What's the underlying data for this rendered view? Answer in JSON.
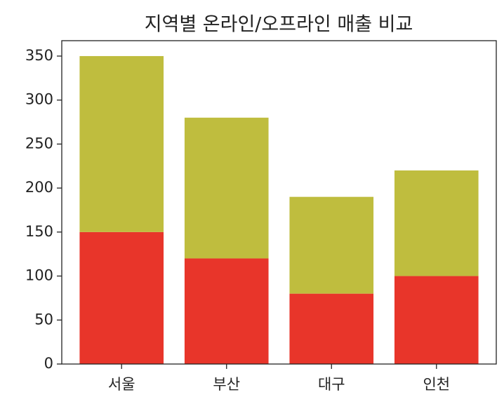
{
  "chart_data": {
    "type": "stacked_bar",
    "title": "지역별 온라인/오프라인 매출 비교",
    "categories": [
      "서울",
      "부산",
      "대구",
      "인천"
    ],
    "series": [
      {
        "color": "#e8352a",
        "values": [
          150,
          120,
          80,
          100
        ]
      },
      {
        "color": "#bfbd3e",
        "values": [
          200,
          160,
          110,
          120
        ]
      }
    ],
    "ylim": [
      0,
      367.5
    ],
    "yticks": [
      0,
      50,
      100,
      150,
      200,
      250,
      300,
      350
    ]
  }
}
